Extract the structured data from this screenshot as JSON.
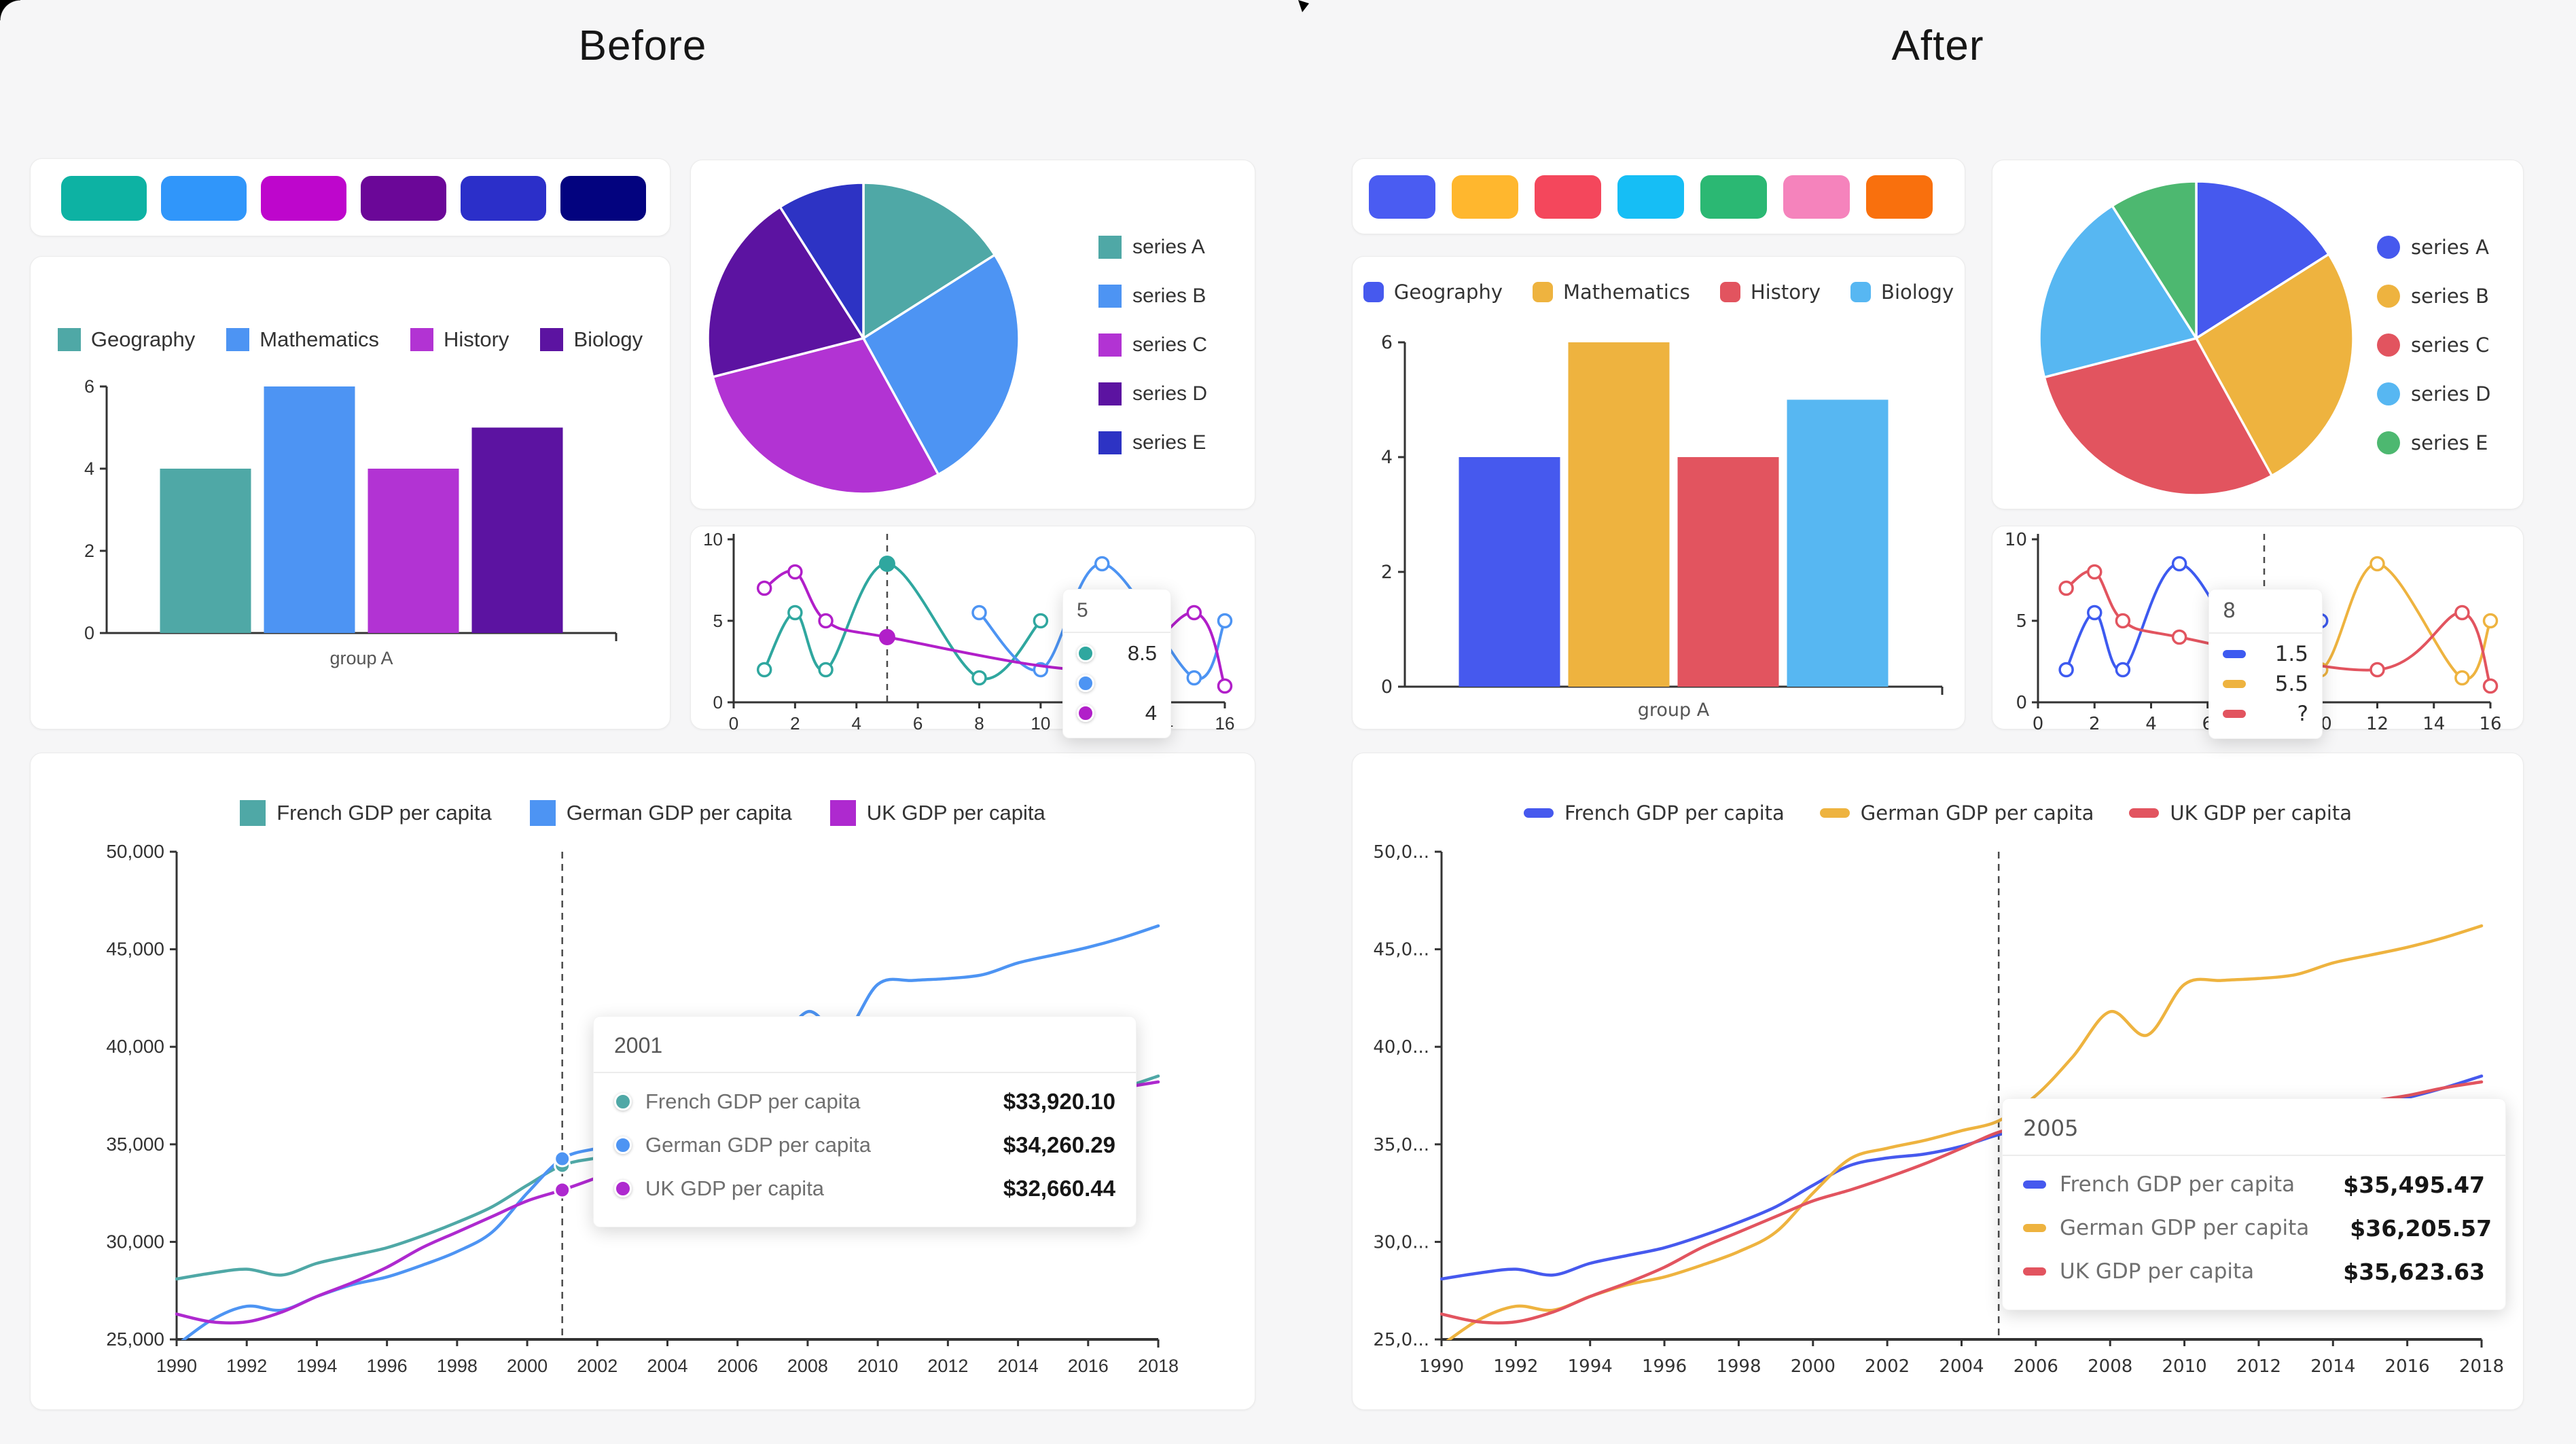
{
  "page": {
    "background": "#f6f6f7",
    "card_background": "#ffffff"
  },
  "before": {
    "title": "Before",
    "palette": [
      "#0db2a3",
      "#3096fa",
      "#be06cc",
      "#6b0798",
      "#2b2fc9",
      "#03037f"
    ]
  },
  "after": {
    "title": "After",
    "palette": [
      "#4a5cf2",
      "#ffb72e",
      "#f4475c",
      "#16bef5",
      "#2bb873",
      "#f583bc",
      "#f9700d"
    ]
  },
  "chart_data": [
    {
      "id": "before-bar",
      "type": "bar",
      "panel": "before",
      "categories": [
        "group A"
      ],
      "series": [
        {
          "name": "Geography",
          "color": "#4fa8a6",
          "values": [
            4
          ]
        },
        {
          "name": "Mathematics",
          "color": "#4d94f3",
          "values": [
            6
          ]
        },
        {
          "name": "History",
          "color": "#b233d3",
          "values": [
            4
          ]
        },
        {
          "name": "Biology",
          "color": "#5c13a1",
          "values": [
            5
          ]
        }
      ],
      "ylim": [
        0,
        6
      ],
      "yticks": [
        "0",
        "2",
        "4",
        "6"
      ],
      "legend_marker": "square"
    },
    {
      "id": "after-bar",
      "type": "bar",
      "panel": "after",
      "categories": [
        "group A"
      ],
      "series": [
        {
          "name": "Geography",
          "color": "#4659ee",
          "values": [
            4
          ]
        },
        {
          "name": "Mathematics",
          "color": "#eeb33f",
          "values": [
            6
          ]
        },
        {
          "name": "History",
          "color": "#e2545f",
          "values": [
            4
          ]
        },
        {
          "name": "Biology",
          "color": "#57b7f2",
          "values": [
            5
          ]
        }
      ],
      "ylim": [
        0,
        6
      ],
      "yticks": [
        "0",
        "2",
        "4",
        "6"
      ],
      "legend_marker": "roundrect"
    },
    {
      "id": "before-pie",
      "type": "pie",
      "panel": "before",
      "labels": [
        "series A",
        "series B",
        "series C",
        "series D",
        "series E"
      ],
      "values": [
        16,
        26,
        29,
        20,
        9
      ],
      "colors": [
        "#4fa8a6",
        "#4d94f3",
        "#b233d3",
        "#5c13a1",
        "#2d33c4"
      ],
      "legend_marker": "square"
    },
    {
      "id": "after-pie",
      "type": "pie",
      "panel": "after",
      "labels": [
        "series A",
        "series B",
        "series C",
        "series D",
        "series E"
      ],
      "values": [
        16,
        26,
        29,
        20,
        9
      ],
      "colors": [
        "#4659ee",
        "#eeb33f",
        "#e2545f",
        "#57b7f2",
        "#4db870"
      ],
      "legend_marker": "circle"
    },
    {
      "id": "before-line-small",
      "type": "line",
      "panel": "before",
      "xlim": [
        0,
        16
      ],
      "ylim": [
        0,
        10
      ],
      "xticks": [
        "0",
        "2",
        "4",
        "6",
        "8",
        "10",
        "12",
        "14",
        "16"
      ],
      "yticks": [
        "0",
        "5",
        "10"
      ],
      "series": [
        {
          "color": "#2fa79f",
          "x": [
            1,
            2,
            3,
            5,
            8,
            10
          ],
          "y": [
            2,
            5.5,
            2,
            8.5,
            1.5,
            5
          ]
        },
        {
          "color": "#4d94f3",
          "x": [
            8,
            10,
            12,
            15,
            16
          ],
          "y": [
            5.5,
            2,
            8.5,
            1.5,
            5
          ]
        },
        {
          "color": "#b11fc9",
          "x": [
            1,
            2,
            3,
            5,
            12,
            15,
            16
          ],
          "y": [
            7,
            8,
            5,
            4,
            2,
            5.5,
            1
          ]
        }
      ],
      "dashed_x": 5,
      "highlight": [
        {
          "series": 0,
          "x": 5,
          "y": 8.5
        },
        {
          "series": 2,
          "x": 5,
          "y": 4
        }
      ],
      "tooltip": {
        "header": "5",
        "marker": "dot",
        "rows": [
          {
            "color": "#2fa79f",
            "value": "8.5"
          },
          {
            "color": "#4d94f3",
            "value": ""
          },
          {
            "color": "#b11fc9",
            "value": "4"
          }
        ]
      }
    },
    {
      "id": "after-line-small",
      "type": "line",
      "panel": "after",
      "xlim": [
        0,
        16
      ],
      "ylim": [
        0,
        10
      ],
      "xticks": [
        "0",
        "2",
        "4",
        "6",
        "8",
        "10",
        "12",
        "14",
        "16"
      ],
      "yticks": [
        "0",
        "5",
        "10"
      ],
      "series": [
        {
          "color": "#3d5af0",
          "x": [
            1,
            2,
            3,
            5,
            8,
            10
          ],
          "y": [
            2,
            5.5,
            2,
            8.5,
            1.5,
            5
          ]
        },
        {
          "color": "#eeb33f",
          "x": [
            8,
            10,
            12,
            15,
            16
          ],
          "y": [
            5.5,
            2,
            8.5,
            1.5,
            5
          ]
        },
        {
          "color": "#e2545f",
          "x": [
            1,
            2,
            3,
            5,
            12,
            15,
            16
          ],
          "y": [
            7,
            8,
            5,
            4,
            2,
            5.5,
            1
          ]
        }
      ],
      "dashed_x": 8,
      "highlight": [],
      "tooltip": {
        "header": "8",
        "marker": "dash",
        "rows": [
          {
            "color": "#3d5af0",
            "value": "1.5"
          },
          {
            "color": "#eeb33f",
            "value": "5.5"
          },
          {
            "color": "#e2545f",
            "value": "?"
          }
        ]
      }
    },
    {
      "id": "before-gdp",
      "type": "line",
      "panel": "before",
      "x": [
        1990,
        1991,
        1992,
        1993,
        1994,
        1995,
        1996,
        1997,
        1998,
        1999,
        2000,
        2001,
        2002,
        2003,
        2004,
        2005,
        2006,
        2007,
        2008,
        2009,
        2010,
        2011,
        2012,
        2013,
        2014,
        2015,
        2016,
        2017,
        2018
      ],
      "xticks": [
        "1990",
        "1992",
        "1994",
        "1996",
        "1998",
        "2000",
        "2002",
        "2004",
        "2006",
        "2008",
        "2010",
        "2012",
        "2014",
        "2016",
        "2018"
      ],
      "yticks": [
        "25,000",
        "30,000",
        "35,000",
        "40,000",
        "45,000",
        "50,000"
      ],
      "ylim": [
        25000,
        50000
      ],
      "series": [
        {
          "name": "French GDP per capita",
          "color": "#4fa8a6",
          "values": [
            28100,
            28400,
            28600,
            28300,
            28900,
            29300,
            29700,
            30300,
            31000,
            31800,
            32900,
            33920,
            34300,
            34500,
            34900,
            35495,
            35900,
            36400,
            36300,
            35200,
            35800,
            36300,
            36400,
            36600,
            36800,
            37100,
            37400,
            37900,
            38500
          ]
        },
        {
          "name": "German GDP per capita",
          "color": "#4d94f3",
          "values": [
            24700,
            26000,
            26700,
            26500,
            27200,
            27800,
            28200,
            28800,
            29500,
            30500,
            32500,
            34260,
            34800,
            35200,
            35700,
            36206,
            37500,
            39500,
            41800,
            40600,
            43200,
            43400,
            43500,
            43700,
            44300,
            44700,
            45100,
            45600,
            46200
          ]
        },
        {
          "name": "UK GDP per capita",
          "color": "#ae29cf",
          "values": [
            26300,
            25900,
            25900,
            26400,
            27200,
            27900,
            28700,
            29700,
            30500,
            31300,
            32100,
            32660,
            33300,
            34000,
            34800,
            35624,
            36000,
            36300,
            35900,
            34800,
            35200,
            35600,
            35900,
            36300,
            36800,
            37200,
            37500,
            37900,
            38200
          ]
        }
      ],
      "dashed_year": 2001,
      "legend_marker": "square",
      "tooltip": {
        "header": "2001",
        "marker": "dot",
        "rows": [
          {
            "label": "French GDP per capita",
            "value": "$33,920.10",
            "color": "#4fa8a6"
          },
          {
            "label": "German GDP per capita",
            "value": "$34,260.29",
            "color": "#4d94f3"
          },
          {
            "label": "UK GDP per capita",
            "value": "$32,660.44",
            "color": "#ae29cf"
          }
        ]
      }
    },
    {
      "id": "after-gdp",
      "type": "line",
      "panel": "after",
      "x": [
        1990,
        1991,
        1992,
        1993,
        1994,
        1995,
        1996,
        1997,
        1998,
        1999,
        2000,
        2001,
        2002,
        2003,
        2004,
        2005,
        2006,
        2007,
        2008,
        2009,
        2010,
        2011,
        2012,
        2013,
        2014,
        2015,
        2016,
        2017,
        2018
      ],
      "xticks": [
        "1990",
        "1992",
        "1994",
        "1996",
        "1998",
        "2000",
        "2002",
        "2004",
        "2006",
        "2008",
        "2010",
        "2012",
        "2014",
        "2016",
        "2018"
      ],
      "yticks": [
        "25,0...",
        "30,0...",
        "35,0...",
        "40,0...",
        "45,0...",
        "50,0..."
      ],
      "ylim": [
        25000,
        50000
      ],
      "series": [
        {
          "name": "French GDP per capita",
          "color": "#4659ee",
          "values": [
            28100,
            28400,
            28600,
            28300,
            28900,
            29300,
            29700,
            30300,
            31000,
            31800,
            32900,
            33920,
            34300,
            34500,
            34900,
            35495,
            35900,
            36400,
            36300,
            35200,
            35800,
            36300,
            36400,
            36600,
            36800,
            37100,
            37400,
            37900,
            38500
          ]
        },
        {
          "name": "German GDP per capita",
          "color": "#eeb33f",
          "values": [
            24700,
            26000,
            26700,
            26500,
            27200,
            27800,
            28200,
            28800,
            29500,
            30500,
            32500,
            34260,
            34800,
            35200,
            35700,
            36206,
            37500,
            39500,
            41800,
            40600,
            43200,
            43400,
            43500,
            43700,
            44300,
            44700,
            45100,
            45600,
            46200
          ]
        },
        {
          "name": "UK GDP per capita",
          "color": "#e2545f",
          "values": [
            26300,
            25900,
            25900,
            26400,
            27200,
            27900,
            28700,
            29700,
            30500,
            31300,
            32100,
            32660,
            33300,
            34000,
            34800,
            35624,
            36000,
            36300,
            35900,
            34800,
            35200,
            35600,
            35900,
            36300,
            36800,
            37200,
            37500,
            37900,
            38200
          ]
        }
      ],
      "dashed_year": 2005,
      "legend_marker": "dash",
      "tooltip": {
        "header": "2005",
        "marker": "dash",
        "rows": [
          {
            "label": "French GDP per capita",
            "value": "$35,495.47",
            "color": "#4659ee"
          },
          {
            "label": "German GDP per capita",
            "value": "$36,205.57",
            "color": "#eeb33f"
          },
          {
            "label": "UK GDP per capita",
            "value": "$35,623.63",
            "color": "#e2545f"
          }
        ]
      }
    }
  ]
}
